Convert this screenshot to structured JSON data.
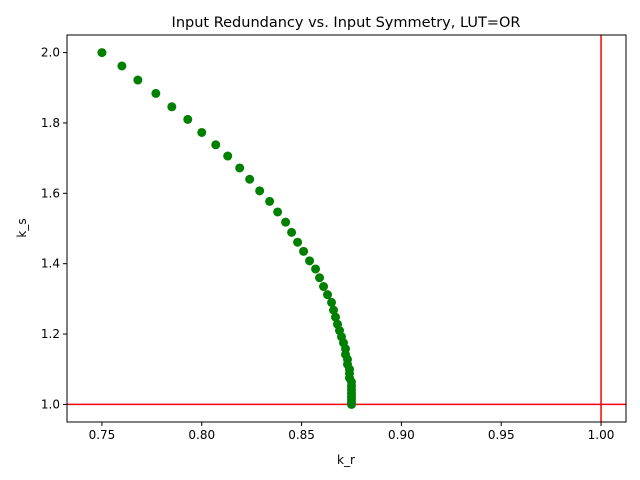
{
  "chart_data": {
    "type": "scatter",
    "title": "Input Redundancy vs. Input Symmetry, LUT=OR",
    "xlabel": "k_r",
    "ylabel": "k_s",
    "xlim": [
      0.7325,
      1.0125
    ],
    "ylim": [
      0.95,
      2.05
    ],
    "xticks": [
      0.75,
      0.8,
      0.85,
      0.9,
      0.95,
      1.0
    ],
    "xtick_labels": [
      "0.75",
      "0.80",
      "0.85",
      "0.90",
      "0.95",
      "1.00"
    ],
    "yticks": [
      1.0,
      1.2,
      1.4,
      1.6,
      1.8,
      2.0
    ],
    "ytick_labels": [
      "1.0",
      "1.2",
      "1.4",
      "1.6",
      "1.8",
      "2.0"
    ],
    "grid": false,
    "series": [
      {
        "marker": "circle",
        "color": "#008000",
        "points": [
          [
            0.75,
            2.0
          ],
          [
            0.76,
            1.962
          ],
          [
            0.768,
            1.922
          ],
          [
            0.777,
            1.884
          ],
          [
            0.785,
            1.846
          ],
          [
            0.793,
            1.81
          ],
          [
            0.8,
            1.773
          ],
          [
            0.807,
            1.738
          ],
          [
            0.813,
            1.706
          ],
          [
            0.819,
            1.672
          ],
          [
            0.824,
            1.64
          ],
          [
            0.829,
            1.607
          ],
          [
            0.834,
            1.577
          ],
          [
            0.838,
            1.547
          ],
          [
            0.842,
            1.518
          ],
          [
            0.845,
            1.489
          ],
          [
            0.848,
            1.461
          ],
          [
            0.851,
            1.435
          ],
          [
            0.854,
            1.408
          ],
          [
            0.857,
            1.385
          ],
          [
            0.859,
            1.36
          ],
          [
            0.861,
            1.335
          ],
          [
            0.863,
            1.312
          ],
          [
            0.865,
            1.29
          ],
          [
            0.866,
            1.268
          ],
          [
            0.867,
            1.248
          ],
          [
            0.868,
            1.228
          ],
          [
            0.869,
            1.21
          ],
          [
            0.87,
            1.192
          ],
          [
            0.871,
            1.175
          ],
          [
            0.872,
            1.158
          ],
          [
            0.872,
            1.142
          ],
          [
            0.873,
            1.128
          ],
          [
            0.873,
            1.114
          ],
          [
            0.874,
            1.1
          ],
          [
            0.874,
            1.088
          ],
          [
            0.874,
            1.075
          ],
          [
            0.875,
            1.064
          ],
          [
            0.875,
            1.052
          ],
          [
            0.875,
            1.042
          ],
          [
            0.875,
            1.032
          ],
          [
            0.875,
            1.022
          ],
          [
            0.875,
            1.014
          ],
          [
            0.875,
            1.006
          ],
          [
            0.875,
            1.0
          ]
        ]
      }
    ],
    "reference_lines": [
      {
        "orientation": "vertical",
        "value": 1.0,
        "color": "#ff0000"
      },
      {
        "orientation": "horizontal",
        "value": 1.0,
        "color": "#ff0000"
      }
    ]
  }
}
